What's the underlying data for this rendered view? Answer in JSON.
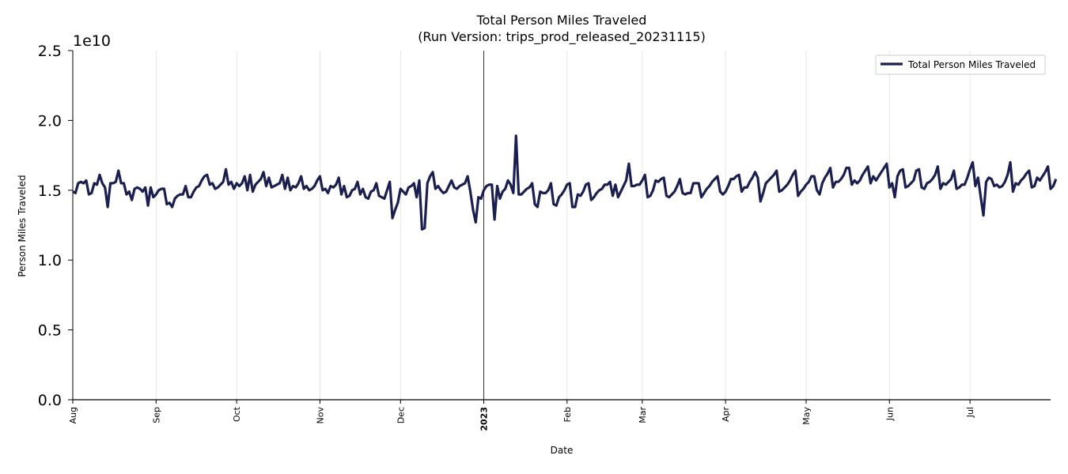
{
  "chart_data": {
    "type": "line",
    "title": "Total Person Miles Traveled",
    "subtitle": "(Run Version: trips_prod_released_20231115)",
    "xlabel": "Date",
    "ylabel": "Person Miles Traveled",
    "y_scale_label": "1e10",
    "ylim": [
      0,
      2.5
    ],
    "yticks": [
      "0.0",
      "0.5",
      "1.0",
      "1.5",
      "2.0",
      "2.5"
    ],
    "xlim": [
      "2022-08-01",
      "2023-07-31"
    ],
    "xticks": [
      {
        "date": "2022-08-01",
        "label": "Aug"
      },
      {
        "date": "2022-09-01",
        "label": "Sep"
      },
      {
        "date": "2022-10-01",
        "label": "Oct"
      },
      {
        "date": "2022-11-01",
        "label": "Nov"
      },
      {
        "date": "2022-12-01",
        "label": "Dec"
      },
      {
        "date": "2023-01-01",
        "label": "2023",
        "bold": true
      },
      {
        "date": "2023-02-01",
        "label": "Feb"
      },
      {
        "date": "2023-03-01",
        "label": "Mar"
      },
      {
        "date": "2023-04-01",
        "label": "Apr"
      },
      {
        "date": "2023-05-01",
        "label": "May"
      },
      {
        "date": "2023-06-01",
        "label": "Jun"
      },
      {
        "date": "2023-07-01",
        "label": "Jul"
      }
    ],
    "grid": true,
    "legend_position": "top-right",
    "series": [
      {
        "name": "Total Person Miles Traveled",
        "color": "#1b1f4f",
        "start_date": "2022-08-01",
        "step": "1 day",
        "values": [
          1.49,
          1.48,
          1.55,
          1.56,
          1.55,
          1.57,
          1.47,
          1.48,
          1.55,
          1.54,
          1.61,
          1.55,
          1.52,
          1.38,
          1.55,
          1.55,
          1.56,
          1.64,
          1.55,
          1.55,
          1.47,
          1.49,
          1.43,
          1.51,
          1.52,
          1.51,
          1.49,
          1.52,
          1.39,
          1.52,
          1.45,
          1.47,
          1.5,
          1.51,
          1.51,
          1.4,
          1.41,
          1.38,
          1.44,
          1.46,
          1.47,
          1.47,
          1.53,
          1.45,
          1.45,
          1.49,
          1.52,
          1.53,
          1.57,
          1.6,
          1.61,
          1.54,
          1.55,
          1.51,
          1.52,
          1.54,
          1.56,
          1.65,
          1.54,
          1.56,
          1.51,
          1.55,
          1.53,
          1.55,
          1.6,
          1.5,
          1.61,
          1.49,
          1.54,
          1.56,
          1.58,
          1.63,
          1.53,
          1.59,
          1.52,
          1.53,
          1.54,
          1.55,
          1.61,
          1.51,
          1.59,
          1.5,
          1.53,
          1.52,
          1.55,
          1.6,
          1.51,
          1.53,
          1.5,
          1.51,
          1.53,
          1.57,
          1.6,
          1.5,
          1.51,
          1.48,
          1.53,
          1.52,
          1.54,
          1.59,
          1.47,
          1.53,
          1.45,
          1.46,
          1.5,
          1.51,
          1.56,
          1.47,
          1.51,
          1.45,
          1.44,
          1.49,
          1.5,
          1.55,
          1.46,
          1.45,
          1.44,
          1.5,
          1.56,
          1.3,
          1.36,
          1.41,
          1.51,
          1.49,
          1.47,
          1.52,
          1.53,
          1.55,
          1.45,
          1.57,
          1.22,
          1.23,
          1.55,
          1.6,
          1.63,
          1.51,
          1.53,
          1.5,
          1.48,
          1.49,
          1.53,
          1.57,
          1.52,
          1.51,
          1.53,
          1.54,
          1.55,
          1.6,
          1.49,
          1.36,
          1.27,
          1.45,
          1.44,
          1.5,
          1.53,
          1.54,
          1.54,
          1.29,
          1.53,
          1.44,
          1.49,
          1.51,
          1.57,
          1.54,
          1.48,
          1.89,
          1.47,
          1.47,
          1.49,
          1.51,
          1.52,
          1.55,
          1.4,
          1.38,
          1.49,
          1.48,
          1.48,
          1.5,
          1.55,
          1.4,
          1.39,
          1.45,
          1.47,
          1.5,
          1.54,
          1.55,
          1.38,
          1.38,
          1.47,
          1.46,
          1.49,
          1.54,
          1.55,
          1.43,
          1.45,
          1.48,
          1.5,
          1.51,
          1.54,
          1.54,
          1.56,
          1.46,
          1.54,
          1.45,
          1.49,
          1.53,
          1.57,
          1.69,
          1.53,
          1.53,
          1.54,
          1.54,
          1.57,
          1.61,
          1.45,
          1.46,
          1.5,
          1.57,
          1.56,
          1.58,
          1.59,
          1.46,
          1.45,
          1.47,
          1.49,
          1.53,
          1.58,
          1.48,
          1.47,
          1.48,
          1.48,
          1.55,
          1.55,
          1.55,
          1.45,
          1.48,
          1.51,
          1.53,
          1.56,
          1.58,
          1.6,
          1.49,
          1.47,
          1.49,
          1.53,
          1.58,
          1.58,
          1.6,
          1.61,
          1.49,
          1.52,
          1.52,
          1.56,
          1.59,
          1.63,
          1.59,
          1.42,
          1.48,
          1.55,
          1.57,
          1.59,
          1.61,
          1.64,
          1.49,
          1.5,
          1.52,
          1.54,
          1.57,
          1.61,
          1.64,
          1.46,
          1.49,
          1.51,
          1.54,
          1.56,
          1.6,
          1.6,
          1.5,
          1.47,
          1.55,
          1.59,
          1.62,
          1.66,
          1.52,
          1.56,
          1.56,
          1.58,
          1.61,
          1.66,
          1.66,
          1.54,
          1.57,
          1.55,
          1.57,
          1.61,
          1.64,
          1.67,
          1.55,
          1.6,
          1.57,
          1.6,
          1.63,
          1.66,
          1.69,
          1.52,
          1.55,
          1.45,
          1.6,
          1.64,
          1.65,
          1.52,
          1.53,
          1.55,
          1.57,
          1.64,
          1.65,
          1.52,
          1.51,
          1.55,
          1.56,
          1.58,
          1.61,
          1.67,
          1.51,
          1.55,
          1.54,
          1.56,
          1.58,
          1.64,
          1.51,
          1.52,
          1.54,
          1.54,
          1.59,
          1.65,
          1.7,
          1.53,
          1.59,
          1.45,
          1.32,
          1.56,
          1.59,
          1.58,
          1.53,
          1.54,
          1.52,
          1.53,
          1.56,
          1.61,
          1.7,
          1.49,
          1.55,
          1.54,
          1.57,
          1.59,
          1.62,
          1.64,
          1.52,
          1.53,
          1.59,
          1.57,
          1.6,
          1.63,
          1.67,
          1.51,
          1.53,
          1.58
        ]
      }
    ]
  }
}
